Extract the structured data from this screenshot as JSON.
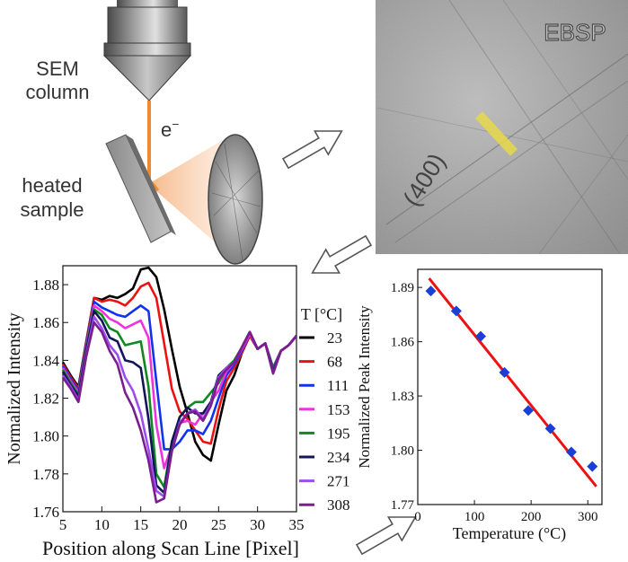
{
  "schematic": {
    "column_label_line1": "SEM",
    "column_label_line2": "column",
    "beam_label": "e",
    "beam_label_sup": "−",
    "sample_label_line1": "heated",
    "sample_label_line2": "sample",
    "beam_color": "#f08a30"
  },
  "ebsp": {
    "title": "EBSP",
    "band_label": "(400)",
    "scan_line_color": "#e8d84a"
  },
  "chart_data": [
    {
      "type": "line",
      "xlabel": "Position along Scan Line [Pixel]",
      "ylabel": "Normalized Intensity",
      "xlim": [
        5,
        35
      ],
      "ylim": [
        1.76,
        1.89
      ],
      "xticks": [
        5,
        10,
        15,
        20,
        25,
        30,
        35
      ],
      "yticks": [
        1.76,
        1.78,
        1.8,
        1.82,
        1.84,
        1.86,
        1.88
      ],
      "legend_title": "T [°C]",
      "legend_position": "right",
      "x": [
        5,
        6,
        7,
        8,
        9,
        10,
        11,
        12,
        13,
        14,
        15,
        16,
        17,
        18,
        19,
        20,
        21,
        22,
        23,
        24,
        25,
        26,
        27,
        28,
        29,
        30,
        31,
        32,
        33,
        34,
        35
      ],
      "series": [
        {
          "name": "23",
          "color": "#000000",
          "values": [
            1.839,
            1.832,
            1.826,
            1.85,
            1.873,
            1.872,
            1.874,
            1.873,
            1.875,
            1.878,
            1.888,
            1.889,
            1.884,
            1.867,
            1.846,
            1.826,
            1.812,
            1.797,
            1.79,
            1.787,
            1.806,
            1.824,
            1.832,
            1.844,
            1.853,
            1.846,
            1.849,
            1.836,
            1.845,
            1.848,
            1.853
          ]
        },
        {
          "name": "68",
          "color": "#ee1111",
          "values": [
            1.838,
            1.831,
            1.825,
            1.849,
            1.873,
            1.871,
            1.872,
            1.871,
            1.869,
            1.873,
            1.879,
            1.881,
            1.873,
            1.849,
            1.825,
            1.813,
            1.809,
            1.803,
            1.797,
            1.796,
            1.814,
            1.829,
            1.836,
            1.844,
            1.853,
            1.846,
            1.849,
            1.836,
            1.845,
            1.848,
            1.853
          ]
        },
        {
          "name": "111",
          "color": "#1133ee",
          "values": [
            1.837,
            1.83,
            1.824,
            1.848,
            1.871,
            1.868,
            1.866,
            1.864,
            1.863,
            1.866,
            1.869,
            1.866,
            1.829,
            1.793,
            1.793,
            1.797,
            1.803,
            1.803,
            1.801,
            1.808,
            1.82,
            1.832,
            1.838,
            1.845,
            1.854,
            1.846,
            1.849,
            1.836,
            1.845,
            1.848,
            1.853
          ]
        },
        {
          "name": "153",
          "color": "#ee33dd",
          "values": [
            1.836,
            1.829,
            1.823,
            1.847,
            1.869,
            1.866,
            1.862,
            1.86,
            1.857,
            1.859,
            1.861,
            1.852,
            1.806,
            1.783,
            1.795,
            1.807,
            1.808,
            1.806,
            1.812,
            1.818,
            1.824,
            1.834,
            1.839,
            1.846,
            1.854,
            1.846,
            1.849,
            1.835,
            1.845,
            1.848,
            1.853
          ]
        },
        {
          "name": "195",
          "color": "#118822",
          "values": [
            1.835,
            1.828,
            1.822,
            1.846,
            1.867,
            1.864,
            1.857,
            1.855,
            1.848,
            1.849,
            1.85,
            1.826,
            1.78,
            1.773,
            1.797,
            1.81,
            1.815,
            1.818,
            1.818,
            1.823,
            1.828,
            1.836,
            1.84,
            1.847,
            1.855,
            1.846,
            1.849,
            1.835,
            1.845,
            1.848,
            1.853
          ]
        },
        {
          "name": "234",
          "color": "#14145a",
          "values": [
            1.834,
            1.827,
            1.821,
            1.845,
            1.866,
            1.861,
            1.852,
            1.85,
            1.84,
            1.839,
            1.836,
            1.809,
            1.774,
            1.77,
            1.797,
            1.81,
            1.815,
            1.812,
            1.812,
            1.818,
            1.832,
            1.836,
            1.839,
            1.847,
            1.855,
            1.846,
            1.849,
            1.834,
            1.845,
            1.848,
            1.853
          ]
        },
        {
          "name": "271",
          "color": "#9b4dee",
          "values": [
            1.832,
            1.826,
            1.819,
            1.843,
            1.863,
            1.857,
            1.848,
            1.843,
            1.831,
            1.824,
            1.812,
            1.793,
            1.771,
            1.768,
            1.792,
            1.807,
            1.812,
            1.814,
            1.809,
            1.817,
            1.831,
            1.836,
            1.839,
            1.847,
            1.855,
            1.846,
            1.849,
            1.833,
            1.845,
            1.848,
            1.853
          ]
        },
        {
          "name": "308",
          "color": "#7a1d8e",
          "values": [
            1.831,
            1.825,
            1.818,
            1.842,
            1.86,
            1.855,
            1.845,
            1.838,
            1.823,
            1.815,
            1.803,
            1.787,
            1.765,
            1.767,
            1.792,
            1.806,
            1.812,
            1.813,
            1.808,
            1.816,
            1.83,
            1.835,
            1.839,
            1.847,
            1.855,
            1.846,
            1.849,
            1.833,
            1.845,
            1.848,
            1.853
          ]
        }
      ]
    },
    {
      "type": "scatter",
      "xlabel": "Temperature (°C)",
      "ylabel": "Normalized Peak Intensity",
      "xlim": [
        0,
        325
      ],
      "ylim": [
        1.77,
        1.9
      ],
      "xticks": [
        0,
        100,
        200,
        300
      ],
      "yticks": [
        1.77,
        1.8,
        1.83,
        1.86,
        1.89
      ],
      "points": [
        {
          "x": 23,
          "y": 1.888
        },
        {
          "x": 68,
          "y": 1.877
        },
        {
          "x": 111,
          "y": 1.863
        },
        {
          "x": 153,
          "y": 1.843
        },
        {
          "x": 195,
          "y": 1.822
        },
        {
          "x": 234,
          "y": 1.812
        },
        {
          "x": 271,
          "y": 1.799
        },
        {
          "x": 308,
          "y": 1.791
        }
      ],
      "fit_line": {
        "x": [
          20,
          315
        ],
        "y": [
          1.895,
          1.78
        ],
        "color": "#ee1111"
      },
      "point_color": "#1a3fd6"
    }
  ]
}
